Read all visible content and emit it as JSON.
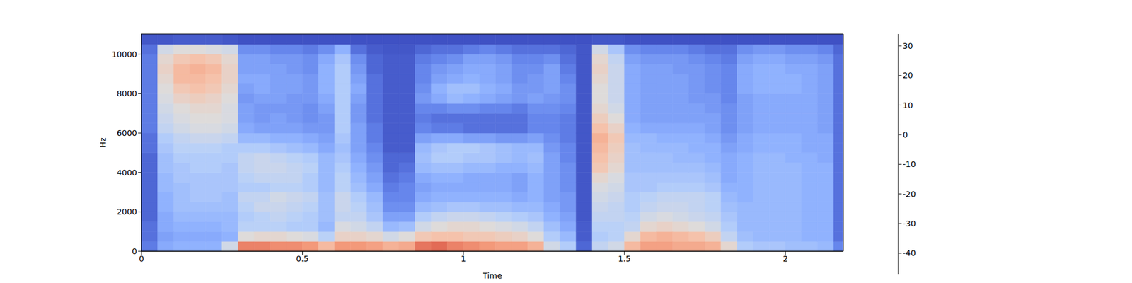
{
  "chart_data": {
    "type": "heatmap",
    "x_label": "Time",
    "y_label": "Hz",
    "xlim": [
      0,
      2.18
    ],
    "ylim": [
      0,
      11025
    ],
    "xticks": [
      0,
      0.5,
      1,
      1.5,
      2
    ],
    "yticks": [
      0,
      2000,
      4000,
      6000,
      8000,
      10000
    ],
    "time_edges": [
      0,
      0.05,
      0.1,
      0.15,
      0.2,
      0.25,
      0.3,
      0.35,
      0.4,
      0.45,
      0.5,
      0.55,
      0.6,
      0.65,
      0.7,
      0.75,
      0.8,
      0.85,
      0.9,
      0.95,
      1.0,
      1.05,
      1.1,
      1.15,
      1.2,
      1.25,
      1.3,
      1.35,
      1.4,
      1.45,
      1.5,
      1.55,
      1.6,
      1.65,
      1.7,
      1.75,
      1.8,
      1.85,
      1.9,
      1.95,
      2.0,
      2.05,
      2.1,
      2.15,
      2.18
    ],
    "freq_edges": [
      0,
      500,
      1000,
      1500,
      2000,
      2500,
      3000,
      3500,
      4000,
      4500,
      5000,
      5500,
      6000,
      6500,
      7000,
      7500,
      8000,
      8500,
      9000,
      9500,
      10000,
      10500,
      11025
    ],
    "cells": [
      [
        -38,
        -40,
        -40,
        -42,
        -42,
        -42,
        -42,
        -42,
        -42,
        -42,
        -40,
        -40,
        -38,
        -38,
        -38,
        -38,
        -38,
        -38,
        -38,
        -38,
        -40,
        -45
      ],
      [
        -28,
        -30,
        -28,
        -28,
        -26,
        -26,
        -24,
        -24,
        -22,
        -22,
        -20,
        -18,
        -14,
        -12,
        -10,
        -8,
        -6,
        -4,
        -2,
        -4,
        -10,
        -45
      ],
      [
        -26,
        -28,
        -26,
        -24,
        -22,
        -22,
        -22,
        -20,
        -20,
        -18,
        -16,
        -14,
        -10,
        -8,
        -6,
        -2,
        2,
        6,
        6,
        2,
        -6,
        -44
      ],
      [
        -26,
        -28,
        -26,
        -24,
        -22,
        -20,
        -20,
        -20,
        -18,
        -18,
        -16,
        -12,
        -8,
        -6,
        -4,
        0,
        4,
        6,
        8,
        4,
        -6,
        -44
      ],
      [
        -26,
        -28,
        -26,
        -24,
        -22,
        -20,
        -20,
        -20,
        -18,
        -18,
        -16,
        -12,
        -8,
        -6,
        -4,
        -2,
        2,
        4,
        6,
        2,
        -8,
        -44
      ],
      [
        -10,
        -26,
        -24,
        -24,
        -22,
        -22,
        -20,
        -20,
        -20,
        -18,
        -18,
        -14,
        -10,
        -8,
        -8,
        -6,
        -4,
        -2,
        -2,
        -4,
        -10,
        -45
      ],
      [
        18,
        -6,
        -16,
        -18,
        -16,
        -14,
        -18,
        -16,
        -14,
        -14,
        -18,
        -24,
        -28,
        -30,
        -30,
        -32,
        -30,
        -28,
        -30,
        -30,
        -34,
        -46
      ],
      [
        18,
        -4,
        -16,
        -16,
        -12,
        -14,
        -18,
        -14,
        -12,
        -12,
        -18,
        -24,
        -30,
        -32,
        -32,
        -30,
        -28,
        -28,
        -30,
        -30,
        -34,
        -46
      ],
      [
        16,
        -4,
        -16,
        -14,
        -12,
        -10,
        -16,
        -14,
        -12,
        -14,
        -20,
        -26,
        -30,
        -30,
        -32,
        -30,
        -30,
        -30,
        -30,
        -32,
        -36,
        -46
      ],
      [
        16,
        -6,
        -18,
        -16,
        -14,
        -12,
        -16,
        -14,
        -14,
        -16,
        -22,
        -26,
        -30,
        -32,
        -32,
        -32,
        -30,
        -30,
        -32,
        -32,
        -36,
        -46
      ],
      [
        14,
        -8,
        -18,
        -18,
        -16,
        -14,
        -18,
        -18,
        -16,
        -18,
        -24,
        -28,
        -32,
        -34,
        -34,
        -32,
        -32,
        -32,
        -34,
        -34,
        -38,
        -46
      ],
      [
        6,
        -16,
        -24,
        -22,
        -22,
        -22,
        -24,
        -24,
        -24,
        -24,
        -28,
        -30,
        -32,
        -32,
        -30,
        -28,
        -26,
        -26,
        -26,
        -28,
        -34,
        -46
      ],
      [
        14,
        -2,
        -8,
        -14,
        -12,
        -12,
        -16,
        -16,
        -18,
        -20,
        -22,
        -20,
        -18,
        -18,
        -18,
        -18,
        -18,
        -18,
        -18,
        -20,
        -26,
        -46
      ],
      [
        14,
        -2,
        -10,
        -14,
        -16,
        -18,
        -22,
        -24,
        -26,
        -28,
        -30,
        -30,
        -30,
        -32,
        -32,
        -30,
        -28,
        -30,
        -32,
        -34,
        -40,
        -46
      ],
      [
        12,
        -4,
        -14,
        -20,
        -22,
        -24,
        -28,
        -30,
        -32,
        -34,
        -36,
        -38,
        -38,
        -40,
        -40,
        -40,
        -40,
        -40,
        -42,
        -42,
        -44,
        -46
      ],
      [
        8,
        -10,
        -24,
        -30,
        -34,
        -36,
        -38,
        -40,
        -42,
        -42,
        -44,
        -44,
        -44,
        -44,
        -44,
        -44,
        -44,
        -44,
        -44,
        -44,
        -45,
        -46
      ],
      [
        10,
        -6,
        -22,
        -30,
        -34,
        -36,
        -36,
        -38,
        -40,
        -42,
        -44,
        -44,
        -44,
        -44,
        -44,
        -44,
        -44,
        -44,
        -44,
        -44,
        -45,
        -46
      ],
      [
        20,
        2,
        -10,
        -18,
        -24,
        -28,
        -30,
        -28,
        -24,
        -22,
        -24,
        -30,
        -36,
        -38,
        -36,
        -32,
        -34,
        -36,
        -36,
        -38,
        -42,
        -46
      ],
      [
        22,
        4,
        -6,
        -14,
        -22,
        -26,
        -28,
        -26,
        -22,
        -18,
        -20,
        -28,
        -38,
        -40,
        -36,
        -28,
        -26,
        -30,
        -32,
        -36,
        -40,
        -46
      ],
      [
        18,
        4,
        -4,
        -12,
        -20,
        -26,
        -28,
        -26,
        -22,
        -18,
        -18,
        -28,
        -38,
        -40,
        -34,
        -24,
        -22,
        -28,
        -30,
        -34,
        -40,
        -46
      ],
      [
        16,
        2,
        -4,
        -12,
        -20,
        -26,
        -28,
        -28,
        -24,
        -20,
        -18,
        -30,
        -40,
        -40,
        -34,
        -26,
        -22,
        -26,
        -28,
        -30,
        -38,
        -46
      ],
      [
        14,
        2,
        -6,
        -14,
        -22,
        -26,
        -28,
        -28,
        -24,
        -20,
        -20,
        -30,
        -40,
        -40,
        -36,
        -28,
        -26,
        -28,
        -28,
        -30,
        -36,
        -46
      ],
      [
        12,
        0,
        -8,
        -16,
        -22,
        -26,
        -28,
        -28,
        -26,
        -22,
        -22,
        -32,
        -40,
        -40,
        -36,
        -30,
        -28,
        -30,
        -30,
        -32,
        -38,
        -46
      ],
      [
        12,
        -2,
        -10,
        -18,
        -24,
        -28,
        -30,
        -30,
        -26,
        -24,
        -24,
        -32,
        -40,
        -40,
        -38,
        -32,
        -32,
        -34,
        -34,
        -36,
        -40,
        -46
      ],
      [
        8,
        -6,
        -14,
        -20,
        -24,
        -26,
        -26,
        -26,
        -24,
        -22,
        -24,
        -30,
        -36,
        -36,
        -34,
        -30,
        -32,
        -32,
        -34,
        -36,
        -40,
        -46
      ],
      [
        -10,
        -18,
        -22,
        -26,
        -28,
        -30,
        -30,
        -30,
        -30,
        -30,
        -32,
        -34,
        -36,
        -36,
        -34,
        -32,
        -30,
        -30,
        -30,
        -34,
        -40,
        -46
      ],
      [
        -18,
        -24,
        -28,
        -30,
        -32,
        -32,
        -34,
        -34,
        -34,
        -36,
        -36,
        -38,
        -38,
        -38,
        -36,
        -34,
        -34,
        -36,
        -38,
        -40,
        -42,
        -46
      ],
      [
        -42,
        -44,
        -44,
        -45,
        -45,
        -45,
        -45,
        -45,
        -45,
        -45,
        -45,
        -45,
        -45,
        -45,
        -45,
        -45,
        -45,
        -45,
        -45,
        -45,
        -45,
        -46
      ],
      [
        -14,
        -18,
        -16,
        -14,
        -12,
        -10,
        -8,
        -4,
        2,
        4,
        6,
        8,
        4,
        0,
        -4,
        -6,
        -6,
        -4,
        -2,
        -4,
        -10,
        -45
      ],
      [
        -10,
        -16,
        -16,
        -14,
        -14,
        -12,
        -10,
        -8,
        -4,
        -2,
        0,
        2,
        -2,
        -6,
        -10,
        -12,
        -12,
        -12,
        -12,
        -14,
        -20,
        -45
      ],
      [
        6,
        -4,
        -14,
        -16,
        -18,
        -18,
        -20,
        -20,
        -22,
        -22,
        -22,
        -24,
        -26,
        -28,
        -28,
        -28,
        -28,
        -28,
        -28,
        -30,
        -34,
        -46
      ],
      [
        12,
        6,
        -4,
        -10,
        -14,
        -16,
        -20,
        -20,
        -22,
        -22,
        -24,
        -24,
        -28,
        -30,
        -30,
        -30,
        -30,
        -30,
        -30,
        -32,
        -36,
        -46
      ],
      [
        12,
        8,
        -2,
        -8,
        -12,
        -14,
        -18,
        -20,
        -22,
        -22,
        -24,
        -26,
        -28,
        -30,
        -30,
        -30,
        -30,
        -30,
        -30,
        -32,
        -36,
        -46
      ],
      [
        10,
        6,
        -4,
        -10,
        -12,
        -14,
        -18,
        -20,
        -22,
        -24,
        -24,
        -26,
        -28,
        -30,
        -30,
        -30,
        -30,
        -30,
        -32,
        -32,
        -36,
        -46
      ],
      [
        10,
        4,
        -6,
        -12,
        -14,
        -14,
        -18,
        -20,
        -22,
        -24,
        -26,
        -26,
        -28,
        -30,
        -30,
        -32,
        -32,
        -32,
        -32,
        -34,
        -38,
        -46
      ],
      [
        8,
        0,
        -10,
        -14,
        -16,
        -16,
        -20,
        -22,
        -24,
        -26,
        -26,
        -28,
        -30,
        -30,
        -32,
        -32,
        -34,
        -34,
        -34,
        -36,
        -40,
        -46
      ],
      [
        -4,
        -14,
        -18,
        -20,
        -22,
        -24,
        -26,
        -28,
        -28,
        -28,
        -30,
        -32,
        -34,
        -34,
        -34,
        -36,
        -36,
        -36,
        -36,
        -38,
        -40,
        -46
      ],
      [
        -18,
        -22,
        -24,
        -24,
        -24,
        -26,
        -26,
        -26,
        -26,
        -26,
        -28,
        -28,
        -30,
        -30,
        -30,
        -30,
        -28,
        -28,
        -28,
        -30,
        -34,
        -46
      ],
      [
        -20,
        -24,
        -24,
        -24,
        -24,
        -24,
        -24,
        -24,
        -24,
        -24,
        -26,
        -26,
        -28,
        -28,
        -28,
        -28,
        -26,
        -26,
        -26,
        -28,
        -32,
        -46
      ],
      [
        -20,
        -24,
        -24,
        -24,
        -24,
        -24,
        -24,
        -24,
        -24,
        -24,
        -26,
        -26,
        -28,
        -28,
        -28,
        -28,
        -26,
        -26,
        -26,
        -28,
        -32,
        -46
      ],
      [
        -22,
        -24,
        -24,
        -24,
        -24,
        -24,
        -24,
        -24,
        -24,
        -26,
        -26,
        -26,
        -28,
        -28,
        -28,
        -28,
        -26,
        -26,
        -28,
        -30,
        -34,
        -46
      ],
      [
        -22,
        -26,
        -26,
        -26,
        -26,
        -26,
        -26,
        -26,
        -26,
        -26,
        -28,
        -28,
        -28,
        -28,
        -28,
        -28,
        -28,
        -28,
        -28,
        -30,
        -34,
        -46
      ],
      [
        -24,
        -26,
        -26,
        -26,
        -26,
        -26,
        -26,
        -26,
        -26,
        -28,
        -28,
        -28,
        -30,
        -30,
        -30,
        -30,
        -30,
        -30,
        -30,
        -32,
        -36,
        -46
      ],
      [
        -36,
        -40,
        -40,
        -40,
        -40,
        -40,
        -40,
        -40,
        -40,
        -40,
        -40,
        -40,
        -40,
        -40,
        -40,
        -40,
        -40,
        -40,
        -40,
        -40,
        -42,
        -46
      ]
    ],
    "colorbar": {
      "range": [
        -47,
        34
      ],
      "ticks": [
        -40,
        -30,
        -20,
        -10,
        0,
        10,
        20,
        30
      ]
    }
  }
}
